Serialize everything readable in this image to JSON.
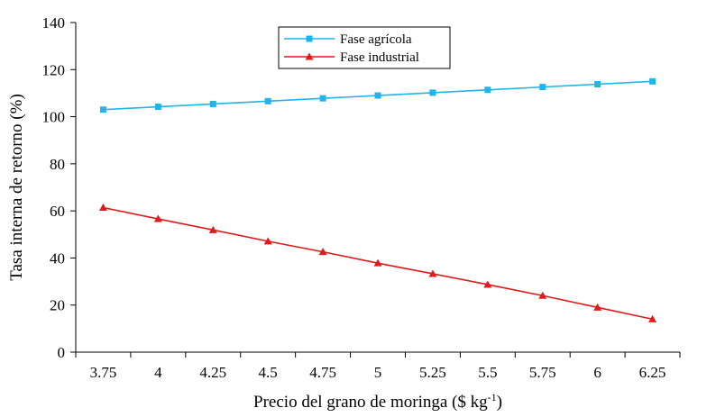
{
  "chart_data": {
    "type": "line",
    "title": "",
    "xlabel": "Precio del grano de moringa ($ kg",
    "xlabel_sup": "-1",
    "xlabel_end": ")",
    "ylabel": "Tasa interna de retorno (%)",
    "categories": [
      "3.75",
      "4",
      "4.25",
      "4.5",
      "4.75",
      "5",
      "5.25",
      "5.5",
      "5.75",
      "6",
      "6.25"
    ],
    "ylim": [
      0,
      140
    ],
    "yticks": [
      0,
      20,
      40,
      60,
      80,
      100,
      120,
      140
    ],
    "grid": false,
    "legend_position": "top-center",
    "series": [
      {
        "name": "Fase agrícola",
        "marker": "square",
        "color": "#1FB4EC",
        "marker_color": "#1FB4EC",
        "values": [
          103,
          104.2,
          105.4,
          106.6,
          107.8,
          109,
          110.2,
          111.4,
          112.6,
          113.8,
          115
        ]
      },
      {
        "name": "Fase industrial",
        "marker": "triangle",
        "color": "#E31A1C",
        "marker_color": "#E31A1C",
        "values": [
          61.4,
          56.6,
          51.9,
          47.1,
          42.6,
          37.8,
          33.3,
          28.7,
          24,
          19,
          14
        ]
      }
    ]
  }
}
